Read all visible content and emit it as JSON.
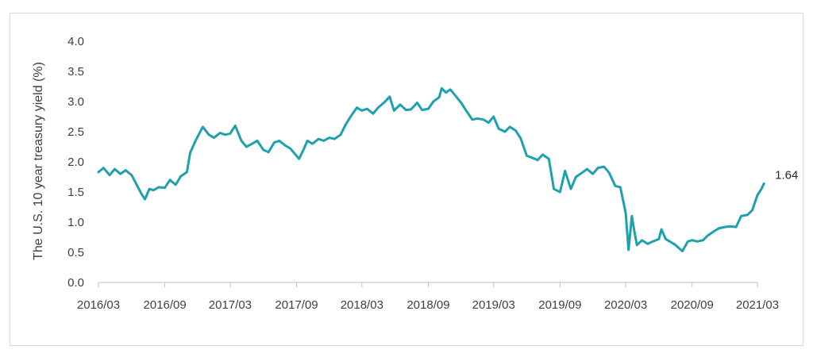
{
  "chart_data": {
    "type": "line",
    "title": "",
    "xlabel": "",
    "ylabel": "The U.S. 10 year treasury yield (%)",
    "ylim": [
      0,
      4
    ],
    "y_ticks": [
      "0.0",
      "0.5",
      "1.0",
      "1.5",
      "2.0",
      "2.5",
      "3.0",
      "3.5",
      "4.0"
    ],
    "x_ticks": [
      "2016/03",
      "2016/09",
      "2017/03",
      "2017/09",
      "2018/03",
      "2018/09",
      "2019/03",
      "2019/09",
      "2020/03",
      "2020/09",
      "2021/03"
    ],
    "grid": false,
    "legend": "none",
    "line_color": "#1fa0ad",
    "end_label": "1.64",
    "series": [
      {
        "x": [
          "2016/03/01",
          "2016/03/15",
          "2016/04/01",
          "2016/04/15",
          "2016/05/01",
          "2016/05/15",
          "2016/06/01",
          "2016/06/15",
          "2016/06/28",
          "2016/07/08",
          "2016/07/20",
          "2016/08/01",
          "2016/08/15",
          "2016/09/01",
          "2016/09/15",
          "2016/10/01",
          "2016/10/15",
          "2016/11/01",
          "2016/11/10",
          "2016/11/25",
          "2016/12/15",
          "2017/01/01",
          "2017/01/15",
          "2017/02/01",
          "2017/02/15",
          "2017/03/01",
          "2017/03/15",
          "2017/04/01",
          "2017/04/15",
          "2017/05/01",
          "2017/05/15",
          "2017/06/01",
          "2017/06/15",
          "2017/07/01",
          "2017/07/15",
          "2017/08/01",
          "2017/08/15",
          "2017/09/08",
          "2017/09/20",
          "2017/10/01",
          "2017/10/15",
          "2017/11/01",
          "2017/11/15",
          "2017/12/01",
          "2017/12/15",
          "2018/01/01",
          "2018/01/15",
          "2018/02/01",
          "2018/02/15",
          "2018/03/01",
          "2018/03/15",
          "2018/04/01",
          "2018/04/15",
          "2018/05/01",
          "2018/05/17",
          "2018/05/29",
          "2018/06/15",
          "2018/07/01",
          "2018/07/15",
          "2018/08/01",
          "2018/08/15",
          "2018/09/01",
          "2018/09/15",
          "2018/10/01",
          "2018/10/08",
          "2018/10/20",
          "2018/11/01",
          "2018/11/15",
          "2018/12/01",
          "2018/12/15",
          "2019/01/01",
          "2019/01/15",
          "2019/02/01",
          "2019/02/15",
          "2019/03/01",
          "2019/03/15",
          "2019/04/01",
          "2019/04/15",
          "2019/05/01",
          "2019/05/15",
          "2019/06/01",
          "2019/06/15",
          "2019/07/01",
          "2019/07/15",
          "2019/08/01",
          "2019/08/15",
          "2019/09/01",
          "2019/09/15",
          "2019/10/01",
          "2019/10/15",
          "2019/11/01",
          "2019/11/15",
          "2019/12/01",
          "2019/12/15",
          "2020/01/01",
          "2020/01/15",
          "2020/02/01",
          "2020/02/15",
          "2020/03/01",
          "2020/03/09",
          "2020/03/18",
          "2020/03/25",
          "2020/04/01",
          "2020/04/15",
          "2020/05/01",
          "2020/05/15",
          "2020/06/01",
          "2020/06/08",
          "2020/06/20",
          "2020/07/01",
          "2020/07/15",
          "2020/08/05",
          "2020/08/20",
          "2020/09/01",
          "2020/09/15",
          "2020/10/01",
          "2020/10/15",
          "2020/11/01",
          "2020/11/15",
          "2020/12/01",
          "2020/12/15",
          "2021/01/01",
          "2021/01/15",
          "2021/02/01",
          "2021/02/15",
          "2021/03/01",
          "2021/03/12",
          "2021/03/19"
        ],
        "values": [
          1.83,
          1.9,
          1.78,
          1.88,
          1.8,
          1.86,
          1.78,
          1.62,
          1.47,
          1.38,
          1.55,
          1.53,
          1.58,
          1.57,
          1.7,
          1.62,
          1.76,
          1.83,
          2.15,
          2.35,
          2.58,
          2.45,
          2.4,
          2.48,
          2.45,
          2.47,
          2.6,
          2.35,
          2.25,
          2.3,
          2.35,
          2.2,
          2.16,
          2.32,
          2.35,
          2.27,
          2.22,
          2.05,
          2.2,
          2.35,
          2.3,
          2.38,
          2.35,
          2.4,
          2.38,
          2.45,
          2.62,
          2.78,
          2.9,
          2.85,
          2.88,
          2.8,
          2.9,
          2.98,
          3.08,
          2.85,
          2.95,
          2.86,
          2.87,
          2.98,
          2.86,
          2.88,
          3.0,
          3.07,
          3.22,
          3.15,
          3.2,
          3.1,
          2.98,
          2.85,
          2.7,
          2.72,
          2.7,
          2.65,
          2.75,
          2.55,
          2.5,
          2.58,
          2.52,
          2.39,
          2.1,
          2.07,
          2.03,
          2.12,
          2.05,
          1.55,
          1.5,
          1.85,
          1.55,
          1.75,
          1.82,
          1.88,
          1.8,
          1.9,
          1.92,
          1.82,
          1.6,
          1.58,
          1.15,
          0.54,
          1.1,
          0.85,
          0.62,
          0.7,
          0.64,
          0.68,
          0.72,
          0.88,
          0.72,
          0.68,
          0.63,
          0.52,
          0.68,
          0.7,
          0.68,
          0.7,
          0.78,
          0.85,
          0.9,
          0.92,
          0.93,
          0.92,
          1.1,
          1.12,
          1.2,
          1.45,
          1.55,
          1.64
        ]
      }
    ]
  }
}
